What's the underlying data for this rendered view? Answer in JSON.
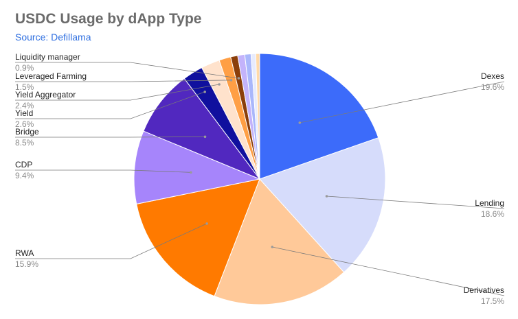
{
  "title": "USDC Usage by dApp Type",
  "subtitle": "Source: Defillama",
  "chart_data": {
    "type": "pie",
    "title": "USDC Usage by dApp Type",
    "subtitle": "Source: Defillama",
    "legend": "none",
    "slices": [
      {
        "name": "Dexes",
        "value": 19.6,
        "label": "19.6%",
        "color": "#3c6bfa"
      },
      {
        "name": "Lending",
        "value": 18.6,
        "label": "18.6%",
        "color": "#d6dcfb"
      },
      {
        "name": "Derivatives",
        "value": 17.5,
        "label": "17.5%",
        "color": "#ffc999"
      },
      {
        "name": "RWA",
        "value": 15.9,
        "label": "15.9%",
        "color": "#ff7a00"
      },
      {
        "name": "CDP",
        "value": 9.4,
        "label": "9.4%",
        "color": "#a685fb"
      },
      {
        "name": "Bridge",
        "value": 8.5,
        "label": "8.5%",
        "color": "#5128bf"
      },
      {
        "name": "Yield",
        "value": 2.6,
        "label": "2.6%",
        "color": "#10109e"
      },
      {
        "name": "Yield Aggregator",
        "value": 2.4,
        "label": "2.4%",
        "color": "#ffe2cc"
      },
      {
        "name": "Leveraged Farming",
        "value": 1.5,
        "label": "1.5%",
        "color": "#ff9f45"
      },
      {
        "name": "Liquidity manager",
        "value": 0.9,
        "label": "0.9%",
        "color": "#8b3f0b"
      },
      {
        "name": "",
        "value": 0.9,
        "label": "",
        "color": "#c3b3fb"
      },
      {
        "name": "",
        "value": 0.8,
        "label": "",
        "color": "#a9b7fb"
      },
      {
        "name": "",
        "value": 0.6,
        "label": "",
        "color": "#e7ebfd"
      },
      {
        "name": "",
        "value": 0.5,
        "label": "",
        "color": "#ffd9a8"
      }
    ]
  }
}
